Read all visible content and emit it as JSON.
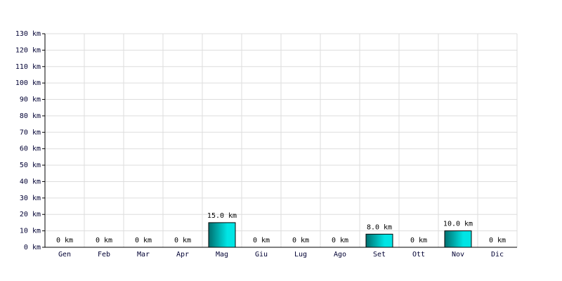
{
  "chart_data": {
    "type": "bar",
    "categories": [
      "Gen",
      "Feb",
      "Mar",
      "Apr",
      "Mag",
      "Giu",
      "Lug",
      "Ago",
      "Set",
      "Ott",
      "Nov",
      "Dic"
    ],
    "values": [
      0,
      0,
      0,
      0,
      15,
      0,
      0,
      0,
      8,
      0,
      10,
      0
    ],
    "value_labels": [
      "0 km",
      "0 km",
      "0 km",
      "0 km",
      "15.0 km",
      "0 km",
      "0 km",
      "0 km",
      "8.0 km",
      "0 km",
      "10.0 km",
      "0 km"
    ],
    "color": "#00e5e5",
    "ylim": [
      0,
      130
    ],
    "yticks": [
      {
        "value": 0,
        "label": "0 km"
      },
      {
        "value": 10,
        "label": "10 km"
      },
      {
        "value": 20,
        "label": "20 km"
      },
      {
        "value": 30,
        "label": "30 km"
      },
      {
        "value": 40,
        "label": "40 km"
      },
      {
        "value": 50,
        "label": "50 km"
      },
      {
        "value": 60,
        "label": "60 km"
      },
      {
        "value": 70,
        "label": "70 km"
      },
      {
        "value": 80,
        "label": "80 km"
      },
      {
        "value": 90,
        "label": "90 km"
      },
      {
        "value": 100,
        "label": "100 km"
      },
      {
        "value": 110,
        "label": "110 km"
      },
      {
        "value": 120,
        "label": "120 km"
      },
      {
        "value": 130,
        "label": "130 km"
      }
    ],
    "grid": true
  }
}
